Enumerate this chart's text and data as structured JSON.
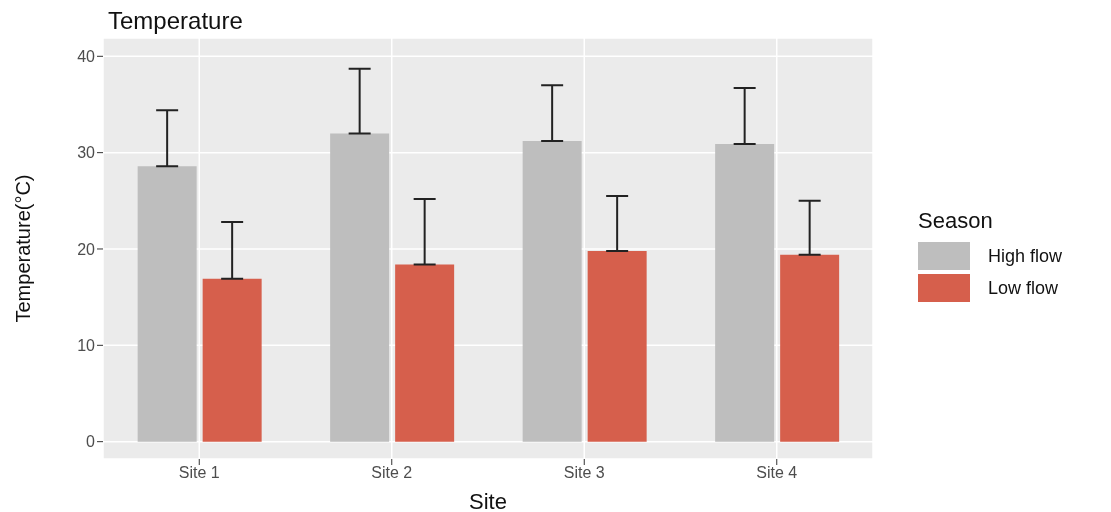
{
  "chart_data": {
    "type": "bar",
    "title": "Temperature",
    "xlabel": "Site",
    "ylabel": "Temperature(°C)",
    "legend_title": "Season",
    "categories": [
      "Site 1",
      "Site 2",
      "Site 3",
      "Site 4"
    ],
    "series": [
      {
        "name": "High flow",
        "color": "#bebebe",
        "values": [
          28.6,
          32.0,
          31.2,
          30.9
        ],
        "errors": [
          [
            28.6,
            34.4
          ],
          [
            32.0,
            38.7
          ],
          [
            31.2,
            37.0
          ],
          [
            30.9,
            36.7
          ]
        ]
      },
      {
        "name": "Low flow",
        "color": "#d65f4c",
        "values": [
          16.9,
          18.4,
          19.8,
          19.4
        ],
        "errors": [
          [
            16.9,
            22.8
          ],
          [
            18.4,
            25.2
          ],
          [
            19.8,
            25.5
          ],
          [
            19.4,
            25.0
          ]
        ]
      }
    ],
    "ylim": [
      -1.8,
      41.9
    ],
    "yticks": [
      0,
      10,
      20,
      30,
      40
    ],
    "grid": true,
    "legend": "right"
  }
}
